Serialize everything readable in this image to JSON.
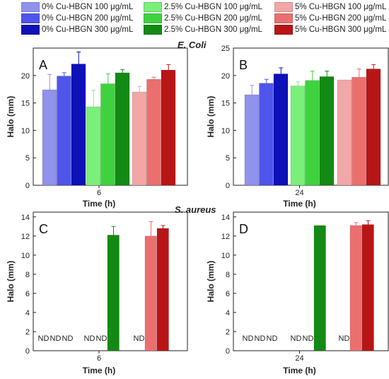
{
  "legend": [
    {
      "label": "0% Cu-HBGN 100 μg/mL",
      "color": "#8f93ec"
    },
    {
      "label": "0% Cu-HBGN 200 μg/mL",
      "color": "#4f55ea"
    },
    {
      "label": "0% Cu-HBGN 300 μg/mL",
      "color": "#0e10b8"
    },
    {
      "label": "2.5% Cu-HBGN 100 μg/mL",
      "color": "#7af07a"
    },
    {
      "label": "2.5% Cu-HBGN 200 μg/mL",
      "color": "#3fd23f"
    },
    {
      "label": "2.5% Cu-HBGN 300 μg/mL",
      "color": "#138a13"
    },
    {
      "label": "5% Cu-HBGN 100 μg/mL",
      "color": "#f2a6a6"
    },
    {
      "label": "5% Cu-HBGN 200 μg/mL",
      "color": "#ec6f6f"
    },
    {
      "label": "5% Cu-HBGN 300 μg/mL",
      "color": "#b81616"
    }
  ],
  "section_titles": {
    "ecoli": "E. Coli",
    "saureus": "S. aureus"
  },
  "chart_data": [
    {
      "panel": "A",
      "type": "bar",
      "organism": "E. Coli",
      "xlabel": "Time (h)",
      "ylabel": "Halo (mm)",
      "category_label": "6",
      "ylim": [
        0,
        25
      ],
      "yticks": [
        0,
        5,
        10,
        15,
        20
      ],
      "values": [
        17.4,
        19.9,
        22.1,
        14.3,
        18.5,
        20.5,
        17.0,
        19.3,
        21.0
      ],
      "errors": [
        2.8,
        0.6,
        2.2,
        3.0,
        1.8,
        0.6,
        1.0,
        0.4,
        1.0
      ],
      "labels": [
        "",
        "",
        "",
        "",
        "",
        "",
        "",
        "",
        ""
      ]
    },
    {
      "panel": "B",
      "type": "bar",
      "organism": "E. Coli",
      "xlabel": "Time (h)",
      "ylabel": "Halo (mm)",
      "category_label": "24",
      "ylim": [
        0,
        25
      ],
      "yticks": [
        0,
        5,
        10,
        15,
        20,
        25
      ],
      "values": [
        16.5,
        18.6,
        20.3,
        18.1,
        19.1,
        19.8,
        19.2,
        19.7,
        21.2
      ],
      "errors": [
        1.7,
        0.7,
        1.1,
        0.7,
        1.7,
        1.0,
        0.0,
        1.5,
        0.8
      ],
      "labels": [
        "",
        "",
        "",
        "",
        "",
        "",
        "",
        "",
        ""
      ]
    },
    {
      "panel": "C",
      "type": "bar",
      "organism": "S. aureus",
      "xlabel": "Time (h)",
      "ylabel": "Halo (mm)",
      "category_label": "6",
      "ylim": [
        0,
        14.5
      ],
      "yticks": [
        0,
        2,
        4,
        6,
        8,
        10,
        12,
        14
      ],
      "values": [
        0,
        0,
        0,
        0,
        0,
        12.1,
        0,
        12.0,
        12.8
      ],
      "errors": [
        0,
        0,
        0,
        0,
        0,
        0.9,
        0,
        1.5,
        0.3
      ],
      "labels": [
        "ND",
        "ND",
        "ND",
        "ND",
        "ND",
        "",
        "ND",
        "",
        ""
      ]
    },
    {
      "panel": "D",
      "type": "bar",
      "organism": "S. aureus",
      "xlabel": "Time (h)",
      "ylabel": "Halo (mm)",
      "category_label": "24",
      "ylim": [
        0,
        14.5
      ],
      "yticks": [
        0,
        2,
        4,
        6,
        8,
        10,
        12,
        14
      ],
      "values": [
        0,
        0,
        0,
        0,
        0,
        13.1,
        0,
        13.1,
        13.2
      ],
      "errors": [
        0,
        0,
        0,
        0,
        0,
        0,
        0,
        0.3,
        0.4
      ],
      "labels": [
        "ND",
        "ND",
        "ND",
        "ND",
        "ND",
        "",
        "ND",
        "",
        ""
      ]
    }
  ]
}
